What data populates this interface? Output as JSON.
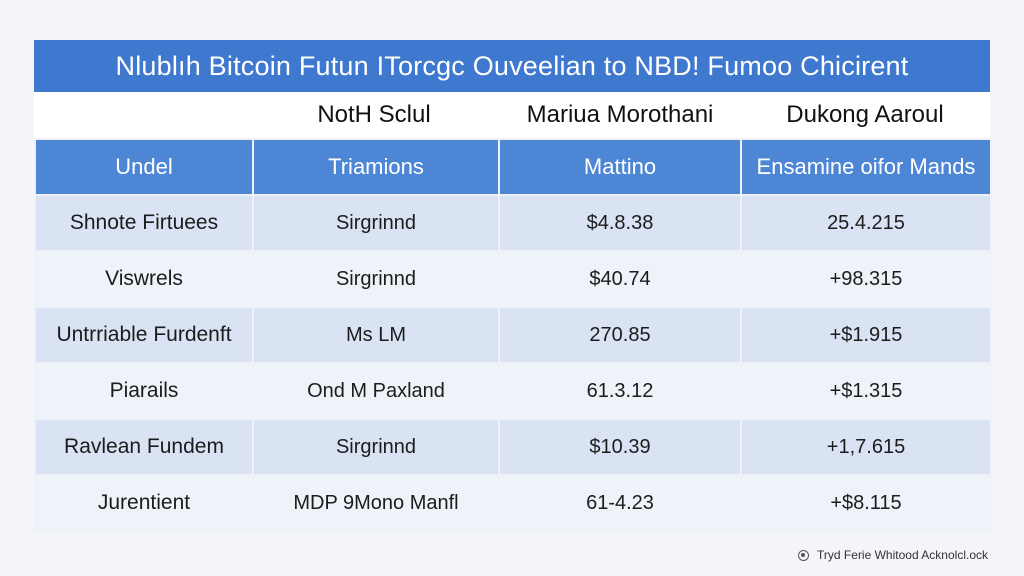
{
  "title": "Nlublıh Bitcoin Futun ITorcgc Ouveelian to NBD! Fumoo Chicirent",
  "group_headers": [
    "NotH Sclul",
    "Mariua Morothani",
    "Dukong Aaroul"
  ],
  "columns": [
    "Undel",
    "Triamions",
    "Mattino",
    "Ensamine oifor Mands"
  ],
  "rows": [
    [
      "Shnote Firtuees",
      "Sirgrinnd",
      "$4.8.38",
      "25.4.215"
    ],
    [
      "Viswrels",
      "Sirgrinnd",
      "$40.74",
      "+98.315"
    ],
    [
      "Untrriable Furdenft",
      "Ms LM",
      "270.85",
      "+$1.915"
    ],
    [
      "Piarails",
      "Ond M Paxland",
      "61.3.12",
      "+$1.315"
    ],
    [
      "Ravlean Fundem",
      "Sirgrinnd",
      "$10.39",
      "+1,7.615"
    ],
    [
      "Jurentient",
      "MDP 9Mono Manfl",
      "61-4.23",
      "+$8.115"
    ]
  ],
  "footer": {
    "icon": "info-circle-icon",
    "text": "Tryd Ferie Whitood Acknolcl.ock"
  }
}
